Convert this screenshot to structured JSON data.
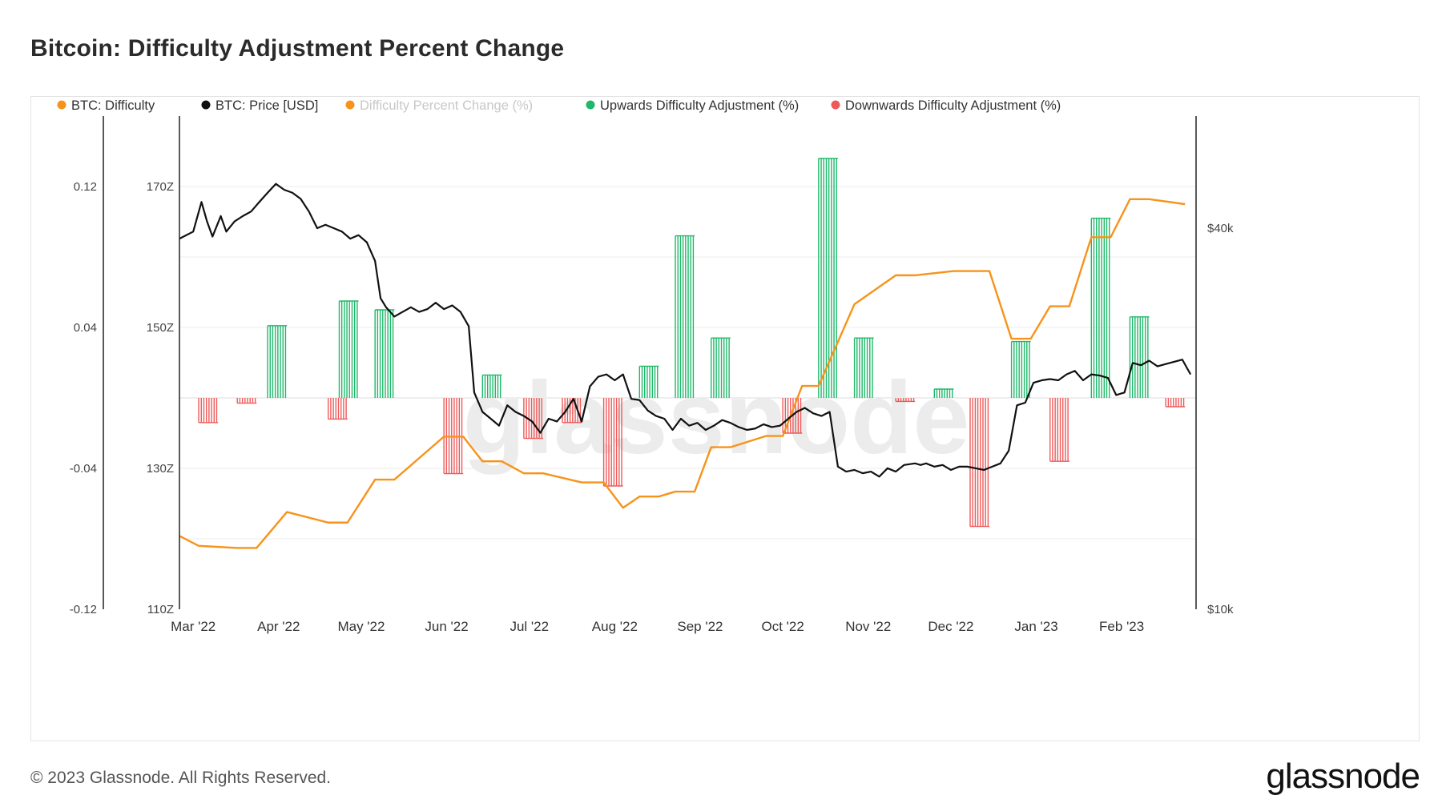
{
  "header": {
    "title": "Bitcoin: Difficulty Adjustment Percent Change"
  },
  "footer": {
    "copyright": "© 2023 Glassnode. All Rights Reserved.",
    "logo": "glassnode"
  },
  "watermark": "glassnode",
  "chart_data": {
    "type": "bar",
    "legend": [
      {
        "name": "BTC: Difficulty",
        "color": "#f7931a",
        "muted": false
      },
      {
        "name": "BTC: Price [USD]",
        "color": "#111111",
        "muted": false
      },
      {
        "name": "Difficulty Percent Change (%)",
        "color": "#f7931a",
        "muted": true
      },
      {
        "name": "Upwards Difficulty Adjustment (%)",
        "color": "#1fb86a",
        "muted": false
      },
      {
        "name": "Downwards Difficulty Adjustment (%)",
        "color": "#ee5a5a",
        "muted": false
      }
    ],
    "x_ticks": [
      "Mar '22",
      "Apr '22",
      "May '22",
      "Jun '22",
      "Jul '22",
      "Aug '22",
      "Sep '22",
      "Oct '22",
      "Nov '22",
      "Dec '22",
      "Jan '23",
      "Feb '23"
    ],
    "x_tick_days": [
      0,
      31,
      61,
      92,
      122,
      153,
      184,
      214,
      245,
      275,
      306,
      337
    ],
    "x_range_days": [
      -5,
      364
    ],
    "axes": {
      "percent": {
        "ticks": [
          "0.12",
          "0.04",
          "-0.04",
          "-0.12"
        ],
        "range": [
          -0.12,
          0.16
        ]
      },
      "difficulty": {
        "ticks": [
          "170Z",
          "150Z",
          "130Z",
          "110Z"
        ],
        "range": [
          110,
          170
        ]
      },
      "price": {
        "ticks": [
          "$40k",
          "$10k"
        ],
        "log": true
      }
    },
    "grid": true,
    "series": [
      {
        "name": "Upwards Difficulty Adjustment (%)",
        "color": "#1fb86a",
        "start_days": [
          27,
          53,
          66,
          105,
          162,
          175,
          188,
          227,
          240,
          269,
          297,
          326,
          340
        ],
        "end_days": [
          34,
          60,
          73,
          112,
          169,
          182,
          195,
          234,
          247,
          276,
          304,
          333,
          347
        ],
        "values": [
          0.041,
          0.055,
          0.05,
          0.013,
          0.018,
          0.092,
          0.034,
          0.136,
          0.034,
          0.005,
          0.032,
          0.102,
          0.046
        ]
      },
      {
        "name": "Downwards Difficulty Adjustment (%)",
        "color": "#ee5a5a",
        "start_days": [
          2,
          16,
          49,
          91,
          120,
          134,
          149,
          214,
          255,
          282,
          311,
          353
        ],
        "end_days": [
          9,
          23,
          56,
          98,
          127,
          141,
          156,
          221,
          262,
          289,
          318,
          360
        ],
        "values": [
          -0.014,
          -0.003,
          -0.012,
          -0.043,
          -0.023,
          -0.014,
          -0.05,
          -0.02,
          -0.002,
          -0.073,
          -0.036,
          -0.005
        ]
      },
      {
        "name": "BTC: Difficulty",
        "color": "#f7931a",
        "x_days": [
          -5,
          2,
          16,
          23,
          34,
          49,
          56,
          66,
          73,
          91,
          98,
          105,
          112,
          120,
          127,
          141,
          149,
          156,
          162,
          169,
          175,
          182,
          188,
          195,
          208,
          214,
          221,
          227,
          240,
          255,
          262,
          276,
          289,
          297,
          304,
          311,
          318,
          326,
          333,
          340,
          347,
          360
        ],
        "y": [
          120.4,
          119.0,
          118.7,
          118.7,
          123.8,
          122.3,
          122.3,
          128.4,
          128.4,
          134.5,
          134.5,
          131.0,
          131.0,
          129.3,
          129.3,
          128.0,
          128.0,
          124.4,
          126.0,
          126.0,
          126.7,
          126.7,
          133.0,
          133.0,
          134.6,
          134.6,
          141.7,
          141.7,
          153.3,
          157.4,
          157.4,
          158.0,
          158.0,
          148.4,
          148.4,
          153.0,
          153.0,
          162.8,
          162.8,
          168.2,
          168.2,
          167.5
        ]
      },
      {
        "name": "BTC: Price [USD]",
        "color": "#111111",
        "x_days": [
          -5,
          0,
          3,
          5,
          7,
          10,
          12,
          15,
          18,
          21,
          24,
          27,
          30,
          33,
          36,
          39,
          42,
          45,
          48,
          51,
          54,
          57,
          60,
          63,
          66,
          68,
          70,
          73,
          76,
          79,
          82,
          85,
          88,
          91,
          94,
          97,
          100,
          102,
          105,
          108,
          111,
          114,
          117,
          120,
          123,
          126,
          129,
          132,
          135,
          138,
          141,
          144,
          147,
          150,
          153,
          156,
          159,
          162,
          165,
          168,
          171,
          174,
          177,
          180,
          183,
          186,
          189,
          192,
          195,
          198,
          201,
          204,
          207,
          210,
          213,
          216,
          219,
          222,
          225,
          228,
          231,
          234,
          237,
          240,
          243,
          246,
          249,
          252,
          255,
          258,
          262,
          264,
          266,
          269,
          272,
          275,
          278,
          281,
          284,
          287,
          290,
          293,
          296,
          299,
          302,
          305,
          308,
          311,
          314,
          317,
          320,
          323,
          326,
          329,
          332,
          335,
          338,
          341,
          344,
          347,
          350,
          353,
          356,
          359,
          362
        ],
        "y": [
          38500,
          39500,
          44000,
          41000,
          38800,
          41800,
          39500,
          41000,
          41800,
          42500,
          44000,
          45500,
          47000,
          46000,
          45500,
          44500,
          42500,
          40000,
          40500,
          40000,
          39500,
          38500,
          39000,
          38000,
          35500,
          31000,
          30000,
          29000,
          29500,
          30000,
          29500,
          29800,
          30500,
          29800,
          30200,
          29500,
          28000,
          22000,
          20500,
          20000,
          19500,
          21000,
          20500,
          20200,
          19800,
          19000,
          20000,
          19800,
          20500,
          21500,
          19800,
          22500,
          23300,
          23500,
          23000,
          23500,
          21500,
          21400,
          20600,
          20200,
          20000,
          19200,
          20000,
          19500,
          19700,
          19200,
          19500,
          19900,
          19700,
          19400,
          19200,
          19300,
          19600,
          19400,
          19500,
          20000,
          20500,
          20800,
          20400,
          20200,
          20500,
          16800,
          16500,
          16600,
          16400,
          16500,
          16200,
          16700,
          16500,
          16900,
          17000,
          16900,
          17000,
          16800,
          16900,
          16600,
          16800,
          16800,
          16700,
          16600,
          16800,
          17000,
          17800,
          21000,
          21200,
          22800,
          23000,
          23100,
          23000,
          23500,
          23800,
          23000,
          23500,
          23400,
          23200,
          21800,
          22000,
          24500,
          24300,
          24700,
          24200,
          24400,
          24600,
          24800,
          23500
        ]
      }
    ]
  }
}
